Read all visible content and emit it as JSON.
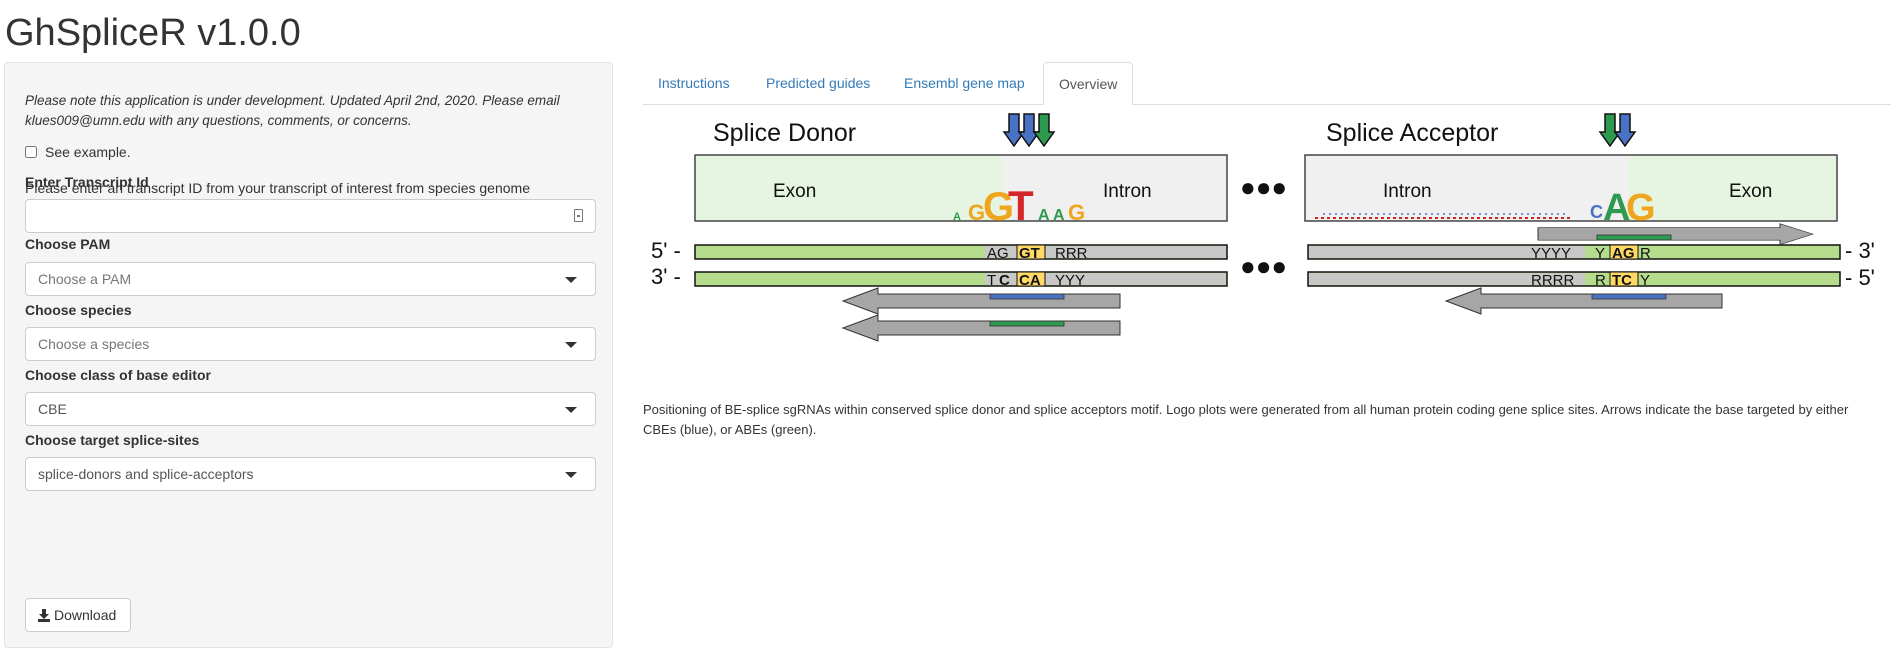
{
  "app": {
    "title": "GhSpliceR v1.0.0"
  },
  "sidebar": {
    "note": "Please note this application is under development. Updated April 2nd, 2020. Please email klues009@umn.edu with any questions, comments, or concerns.",
    "example_checkbox_label": "See example.",
    "example_checked": false,
    "prompt": "Please enter an transcript ID from your transcript of interest from species genome",
    "transcript": {
      "label": "Enter Transcript Id",
      "value": ""
    },
    "pam": {
      "label": "Choose PAM",
      "placeholder": "Choose a PAM"
    },
    "species": {
      "label": "Choose species",
      "placeholder": "Choose a species"
    },
    "editor_class": {
      "label": "Choose class of base editor",
      "value": "CBE"
    },
    "splice_sites": {
      "label": "Choose target splice-sites",
      "value": "splice-donors and splice-acceptors"
    },
    "download_label": "Download"
  },
  "tabs": [
    {
      "label": "Instructions",
      "active": false
    },
    {
      "label": "Predicted guides",
      "active": false
    },
    {
      "label": "Ensembl gene map",
      "active": false
    },
    {
      "label": "Overview",
      "active": true
    }
  ],
  "figure": {
    "donor_title": "Splice Donor",
    "acceptor_title": "Splice Acceptor",
    "exon": "Exon",
    "intron": "Intron",
    "ellipsis": "●●●",
    "five_prime_left": "5' -",
    "three_prime_left": "3' -",
    "three_prime_right": "- 3'",
    "five_prime_right": "- 5'",
    "donor_top_seq": {
      "a": "AG",
      "b": "GT",
      "c": "RRR"
    },
    "donor_bottom_seq": {
      "a": "T",
      "b": "C",
      "c": "CA",
      "d": "YYY"
    },
    "acceptor_top_seq": {
      "a": "YYYY",
      "b": "Y",
      "c": "AG",
      "d": "R"
    },
    "acceptor_bottom_seq": {
      "a": "RRRR",
      "b": "R",
      "c": "TC",
      "d": "Y"
    },
    "logo_donor": "AGGTAAG",
    "logo_acceptor": "CAG",
    "colors": {
      "cbe_blue": "#4a72c4",
      "abe_green": "#2e9a4f",
      "exon_fill": "#e6f5e1",
      "strand_green": "#b5dc8c",
      "strand_gray": "#c8c8c8",
      "arrow_gray": "#a6a6a6",
      "highlight": "#ffd966"
    }
  },
  "caption": "Positioning of BE-splice sgRNAs within conserved splice donor and splice acceptors motif. Logo plots were generated from all human protein coding gene splice sites. Arrows indicate the base targeted by either CBEs (blue), or ABEs (green)."
}
